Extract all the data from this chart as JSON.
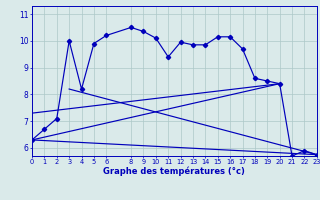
{
  "xlabel": "Graphe des températures (°c)",
  "background_color": "#daeaea",
  "grid_color": "#adc8c8",
  "line_color": "#0000bb",
  "xlim": [
    0,
    23
  ],
  "ylim": [
    5.7,
    11.3
  ],
  "xticks": [
    0,
    1,
    2,
    3,
    4,
    5,
    6,
    8,
    9,
    10,
    11,
    12,
    13,
    14,
    15,
    16,
    17,
    18,
    19,
    20,
    21,
    22,
    23
  ],
  "yticks": [
    6,
    7,
    8,
    9,
    10,
    11
  ],
  "series_main_x": [
    0,
    1,
    2,
    3,
    4,
    5,
    6,
    8,
    9,
    10,
    11,
    12,
    13,
    14,
    15,
    16,
    17,
    18,
    19,
    20,
    21,
    22,
    23
  ],
  "series_main_y": [
    6.3,
    6.7,
    7.1,
    10.0,
    8.2,
    9.9,
    10.2,
    10.5,
    10.35,
    10.1,
    9.4,
    9.95,
    9.85,
    9.85,
    10.15,
    10.15,
    9.7,
    8.6,
    8.5,
    8.4,
    5.7,
    5.9,
    5.75
  ],
  "trend_lines": [
    {
      "x": [
        0,
        23
      ],
      "y": [
        6.3,
        5.75
      ]
    },
    {
      "x": [
        0,
        20
      ],
      "y": [
        6.3,
        8.4
      ]
    },
    {
      "x": [
        0,
        20
      ],
      "y": [
        7.3,
        8.4
      ]
    },
    {
      "x": [
        3,
        23
      ],
      "y": [
        8.2,
        5.75
      ]
    }
  ]
}
